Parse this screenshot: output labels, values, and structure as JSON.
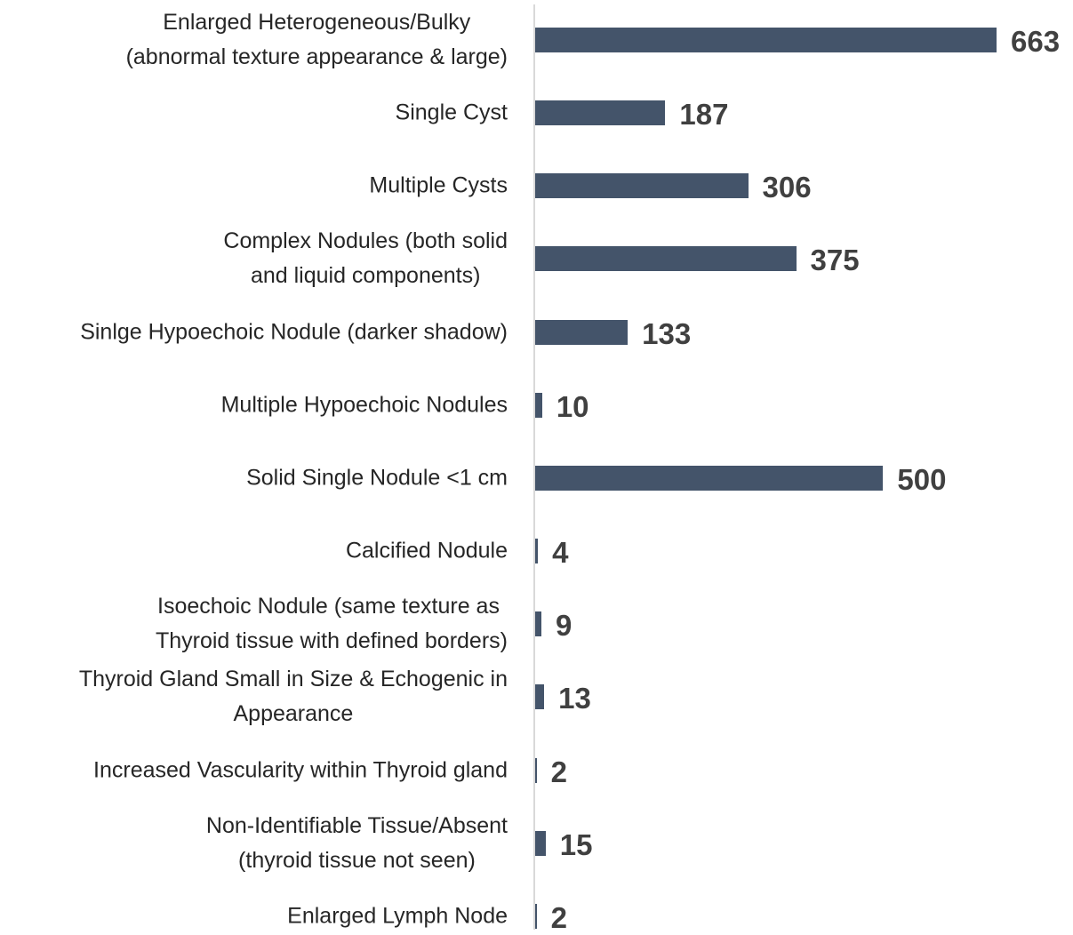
{
  "chart_data": {
    "type": "bar",
    "orientation": "horizontal",
    "color": "#44546a",
    "categories": [
      "Enlarged Heterogeneous/Bulky\n(abnormal texture appearance & large)",
      "Single Cyst",
      "Multiple Cysts",
      "Complex Nodules (both solid\nand liquid components)",
      "Sinlge Hypoechoic Nodule (darker shadow)",
      "Multiple Hypoechoic Nodules",
      "Solid Single Nodule <1 cm",
      "Calcified Nodule",
      "Isoechoic Nodule (same texture as \nThyroid tissue with defined borders)",
      "Thyroid Gland Small in Size & Echogenic in\nAppearance",
      "Increased Vascularity within Thyroid gland",
      "Non-Identifiable Tissue/Absent\n(thyroid tissue not seen)",
      "Enlarged Lymph Node"
    ],
    "values": [
      663,
      187,
      306,
      375,
      133,
      10,
      500,
      4,
      9,
      13,
      2,
      15,
      2
    ]
  }
}
